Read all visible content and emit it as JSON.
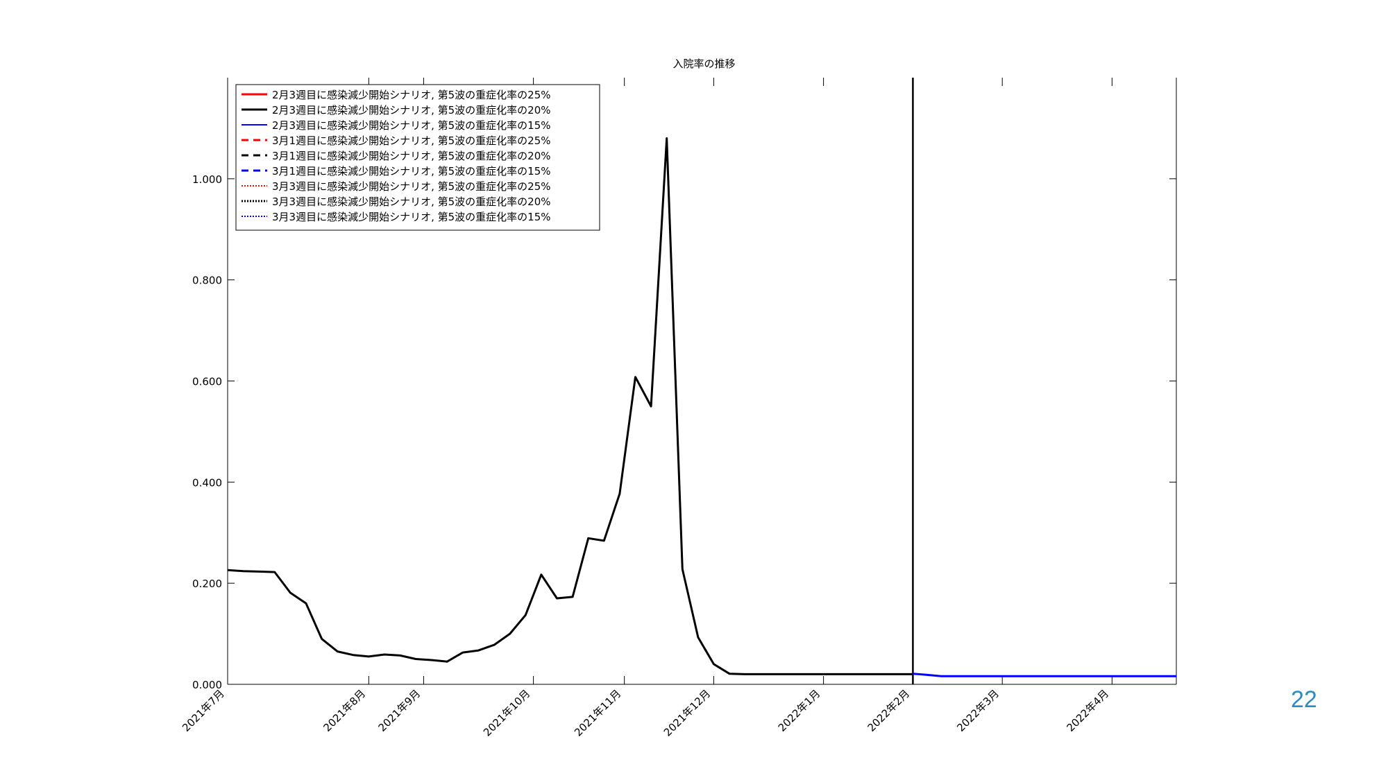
{
  "slide": {
    "page_number": "22"
  },
  "chart_data": {
    "type": "line",
    "title": "入院率の推移",
    "xlabel": "",
    "ylabel": "",
    "ylim": [
      0,
      1.2
    ],
    "y_ticks": [
      0.0,
      0.2,
      0.4,
      0.6,
      0.8,
      1.0
    ],
    "y_tick_labels": [
      "0.000",
      "0.200",
      "0.400",
      "0.600",
      "0.800",
      "1.000"
    ],
    "x_domain_weeks": [
      0,
      60.5
    ],
    "x_ticks": [
      {
        "label": "2021年7月",
        "week": 0
      },
      {
        "label": "2021年8月",
        "week": 9
      },
      {
        "label": "2021年9月",
        "week": 12.5
      },
      {
        "label": "2021年10月",
        "week": 19.5
      },
      {
        "label": "2021年11月",
        "week": 25.3
      },
      {
        "label": "2021年12月",
        "week": 31
      },
      {
        "label": "2022年1月",
        "week": 38
      },
      {
        "label": "2022年2月",
        "week": 43.7
      },
      {
        "label": "2022年3月",
        "week": 49.4
      },
      {
        "label": "2022年4月",
        "week": 56.4
      }
    ],
    "vline_week": 43.7,
    "grid": false,
    "legend_position": "top-left",
    "observed": {
      "x_weeks": [
        0,
        1,
        2,
        3,
        4,
        5,
        6,
        7,
        8,
        9,
        10,
        11,
        12,
        13,
        14,
        15,
        16,
        17,
        18,
        19,
        20,
        21,
        22,
        23,
        24,
        25,
        26,
        27,
        28,
        29,
        30,
        31,
        32,
        33,
        34,
        35,
        36,
        37,
        38,
        39,
        40,
        41,
        42,
        43,
        43.7
      ],
      "y": [
        0.226,
        0.224,
        0.223,
        0.222,
        0.181,
        0.16,
        0.09,
        0.065,
        0.058,
        0.055,
        0.059,
        0.057,
        0.05,
        0.048,
        0.045,
        0.063,
        0.067,
        0.078,
        0.1,
        0.137,
        0.217,
        0.17,
        0.173,
        0.289,
        0.284,
        0.377,
        0.608,
        0.55,
        1.08,
        0.228,
        0.093,
        0.04,
        0.021,
        0.02,
        0.02,
        0.02,
        0.02,
        0.02,
        0.02,
        0.02,
        0.02,
        0.02,
        0.02,
        0.02,
        0.02
      ],
      "color": "#000000"
    },
    "projection": {
      "x_weeks": [
        43.7,
        44.5,
        45.5,
        60.5
      ],
      "y": [
        0.021,
        0.019,
        0.016,
        0.016
      ],
      "color": "#0000ff"
    },
    "series": [
      {
        "name": "2月3週目に感染減少開始シナリオ, 第5波の重症化率の25%",
        "color": "#ff0000",
        "dash": "solid",
        "width": 3
      },
      {
        "name": "2月3週目に感染減少開始シナリオ, 第5波の重症化率の20%",
        "color": "#000000",
        "dash": "solid",
        "width": 3
      },
      {
        "name": "2月3週目に感染減少開始シナリオ, 第5波の重症化率の15%",
        "color": "#0000ff",
        "dash": "solid",
        "width": 2
      },
      {
        "name": "3月1週目に感染減少開始シナリオ, 第5波の重症化率の25%",
        "color": "#ff0000",
        "dash": "dashed",
        "width": 3
      },
      {
        "name": "3月1週目に感染減少開始シナリオ, 第5波の重症化率の20%",
        "color": "#000000",
        "dash": "dashed",
        "width": 3
      },
      {
        "name": "3月1週目に感染減少開始シナリオ, 第5波の重症化率の15%",
        "color": "#0000ff",
        "dash": "dashed",
        "width": 3
      },
      {
        "name": "3月3週目に感染減少開始シナリオ, 第5波の重症化率の25%",
        "color": "#ff0000",
        "dash": "dotted",
        "width": 2
      },
      {
        "name": "3月3週目に感染減少開始シナリオ, 第5波の重症化率の20%",
        "color": "#000000",
        "dash": "dotted",
        "width": 3
      },
      {
        "name": "3月3週目に感染減少開始シナリオ, 第5波の重症化率の15%",
        "color": "#0000ff",
        "dash": "dotted",
        "width": 2
      }
    ]
  }
}
